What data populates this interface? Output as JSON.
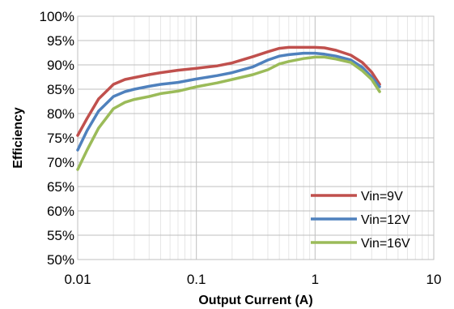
{
  "chart_data": {
    "type": "line",
    "title": "",
    "xlabel": "Output Current (A)",
    "ylabel": "Efficiency",
    "x_scale": "log",
    "xlim": [
      0.01,
      10
    ],
    "ylim": [
      50,
      100
    ],
    "x_ticks": [
      0.01,
      0.1,
      1,
      10
    ],
    "x_tick_labels": [
      "0.01",
      "0.1",
      "1",
      "10"
    ],
    "y_ticks": [
      50,
      55,
      60,
      65,
      70,
      75,
      80,
      85,
      90,
      95,
      100
    ],
    "y_tick_labels": [
      "50%",
      "55%",
      "60%",
      "65%",
      "70%",
      "75%",
      "80%",
      "85%",
      "90%",
      "95%",
      "100%"
    ],
    "grid": true,
    "legend_position": "bottom-right",
    "series": [
      {
        "name": "Vin=9V",
        "color": "#c0504d",
        "points": [
          [
            0.01,
            75.5
          ],
          [
            0.012,
            79
          ],
          [
            0.015,
            83
          ],
          [
            0.02,
            86
          ],
          [
            0.025,
            87
          ],
          [
            0.03,
            87.4
          ],
          [
            0.04,
            88
          ],
          [
            0.05,
            88.4
          ],
          [
            0.07,
            88.9
          ],
          [
            0.1,
            89.3
          ],
          [
            0.15,
            89.8
          ],
          [
            0.2,
            90.4
          ],
          [
            0.3,
            91.7
          ],
          [
            0.4,
            92.7
          ],
          [
            0.5,
            93.4
          ],
          [
            0.6,
            93.6
          ],
          [
            0.8,
            93.6
          ],
          [
            1,
            93.6
          ],
          [
            1.2,
            93.5
          ],
          [
            1.5,
            93
          ],
          [
            2,
            92
          ],
          [
            2.5,
            90.5
          ],
          [
            3,
            88.5
          ],
          [
            3.5,
            86
          ]
        ]
      },
      {
        "name": "Vin=12V",
        "color": "#4f81bd",
        "points": [
          [
            0.01,
            72.5
          ],
          [
            0.012,
            76.5
          ],
          [
            0.015,
            80.5
          ],
          [
            0.02,
            83.5
          ],
          [
            0.025,
            84.5
          ],
          [
            0.03,
            85
          ],
          [
            0.04,
            85.6
          ],
          [
            0.05,
            86
          ],
          [
            0.07,
            86.4
          ],
          [
            0.1,
            87.1
          ],
          [
            0.15,
            87.8
          ],
          [
            0.2,
            88.4
          ],
          [
            0.3,
            89.6
          ],
          [
            0.4,
            91
          ],
          [
            0.5,
            91.8
          ],
          [
            0.6,
            92.1
          ],
          [
            0.8,
            92.4
          ],
          [
            1,
            92.4
          ],
          [
            1.2,
            92.2
          ],
          [
            1.5,
            91.8
          ],
          [
            2,
            91
          ],
          [
            2.5,
            89.5
          ],
          [
            3,
            87.5
          ],
          [
            3.5,
            85.5
          ]
        ]
      },
      {
        "name": "Vin=16V",
        "color": "#9bbb59",
        "points": [
          [
            0.01,
            68.5
          ],
          [
            0.012,
            72.5
          ],
          [
            0.015,
            77
          ],
          [
            0.02,
            81
          ],
          [
            0.025,
            82.3
          ],
          [
            0.03,
            82.9
          ],
          [
            0.04,
            83.5
          ],
          [
            0.05,
            84.1
          ],
          [
            0.07,
            84.6
          ],
          [
            0.1,
            85.5
          ],
          [
            0.15,
            86.3
          ],
          [
            0.2,
            87
          ],
          [
            0.3,
            88
          ],
          [
            0.4,
            89
          ],
          [
            0.5,
            90.2
          ],
          [
            0.6,
            90.7
          ],
          [
            0.8,
            91.3
          ],
          [
            1,
            91.6
          ],
          [
            1.2,
            91.6
          ],
          [
            1.5,
            91.2
          ],
          [
            2,
            90.5
          ],
          [
            2.5,
            88.8
          ],
          [
            3,
            87
          ],
          [
            3.5,
            84.5
          ]
        ]
      }
    ]
  }
}
